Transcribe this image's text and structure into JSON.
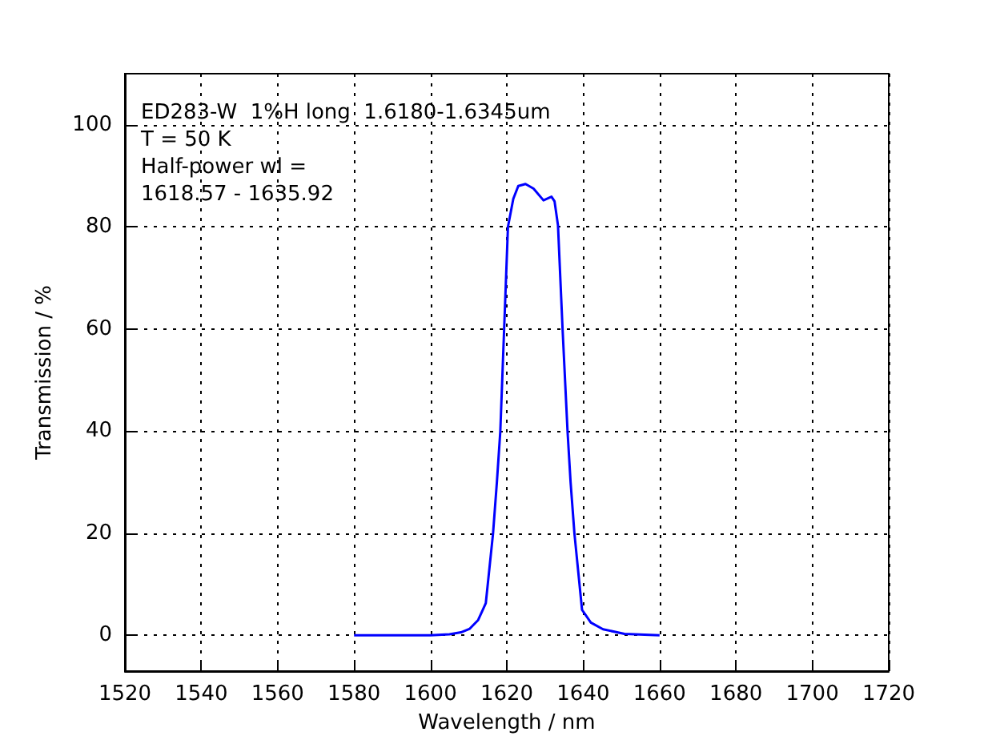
{
  "chart_data": {
    "type": "line",
    "xlabel": "Wavelength / nm",
    "ylabel": "Transmission / %",
    "annotations": [
      "ED283-W  1%H long  1.6180-1.6345um",
      "T = 50 K",
      "Half-power wl =\n1618.57 - 1635.92"
    ],
    "x": [
      1580,
      1600,
      1605,
      1608,
      1610.3,
      1612.5,
      1614.5,
      1616.4,
      1617.4,
      1618.3,
      1619.3,
      1620.3,
      1621.7,
      1623,
      1624.9,
      1627,
      1629.6,
      1631.7,
      1632.5,
      1633.4,
      1634.6,
      1635.9,
      1636.7,
      1637.7,
      1639.7,
      1642,
      1645.2,
      1650.8,
      1660
    ],
    "series": [
      {
        "color": "#0000ff",
        "values": [
          0,
          0,
          0.2,
          0.6,
          1.3,
          3,
          6.3,
          20,
          30,
          40,
          60,
          80,
          85.5,
          88,
          88.4,
          87.5,
          85.2,
          85.9,
          85,
          80.3,
          60,
          40,
          30,
          20,
          5,
          2.5,
          1.2,
          0.3,
          0
        ]
      }
    ],
    "xlim": [
      1520,
      1720
    ],
    "xticks": [
      1520,
      1540,
      1560,
      1580,
      1600,
      1620,
      1640,
      1660,
      1680,
      1700,
      1720
    ],
    "ylim": [
      -7,
      110
    ],
    "yticks": [
      0,
      20,
      40,
      60,
      80,
      100
    ],
    "grid": true,
    "marker": "none",
    "line_style": "solid"
  }
}
